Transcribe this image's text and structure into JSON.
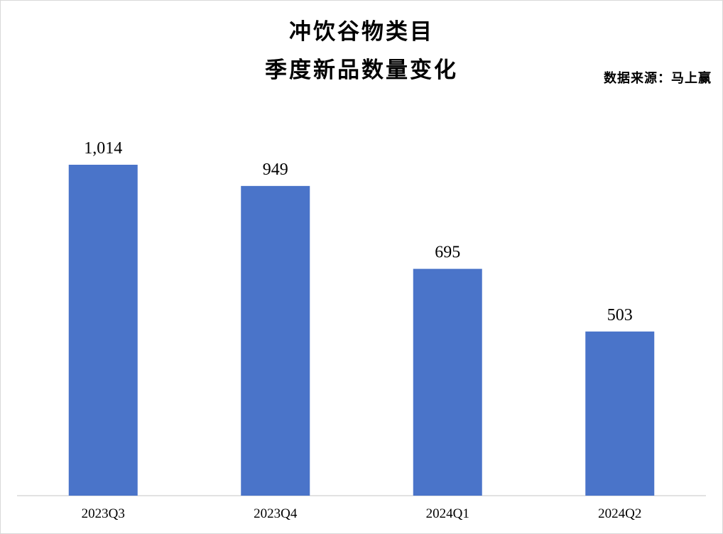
{
  "title_line1": "冲饮谷物类目",
  "title_line2": "季度新品数量变化",
  "source": "数据来源：马上赢",
  "colors": {
    "bar": "#4a74c9",
    "axis": "#d9d9d9"
  },
  "chart_data": {
    "type": "bar",
    "title": "冲饮谷物类目 季度新品数量变化",
    "categories": [
      "2023Q3",
      "2023Q4",
      "2024Q1",
      "2024Q2"
    ],
    "values": [
      1014,
      949,
      695,
      503
    ],
    "value_labels": [
      "1,014",
      "949",
      "695",
      "503"
    ],
    "xlabel": "",
    "ylabel": "",
    "ylim": [
      0,
      1014
    ],
    "grid": false,
    "legend": "none"
  }
}
